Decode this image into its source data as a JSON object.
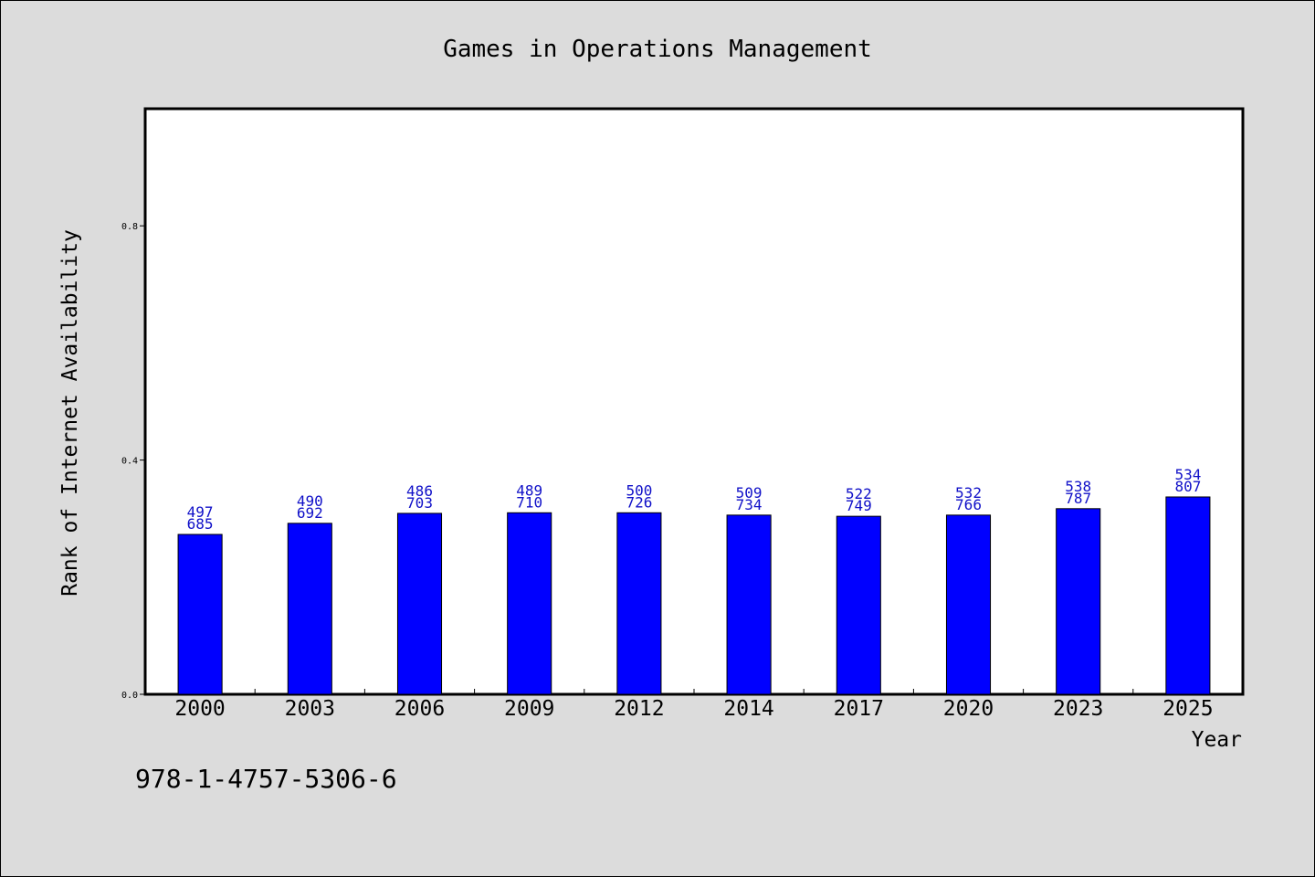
{
  "chart_data": {
    "type": "bar",
    "title": "Games in Operations Management",
    "xlabel": "Year",
    "ylabel": "Rank of Internet Availability",
    "categories": [
      "2000",
      "2003",
      "2006",
      "2009",
      "2012",
      "2014",
      "2017",
      "2020",
      "2023",
      "2025"
    ],
    "values": [
      0.273,
      0.292,
      0.309,
      0.31,
      0.31,
      0.306,
      0.304,
      0.306,
      0.317,
      0.337
    ],
    "labels_top": [
      "497",
      "490",
      "486",
      "489",
      "500",
      "509",
      "522",
      "532",
      "538",
      "534"
    ],
    "labels_bottom": [
      "685",
      "692",
      "703",
      "710",
      "726",
      "734",
      "749",
      "766",
      "787",
      "807"
    ],
    "ylim": [
      0,
      1.0
    ],
    "yticks": [
      "0.0",
      "0.4",
      "0.8"
    ],
    "bar_color": "#0000ff",
    "label_color": "#1010c8",
    "grid": false
  },
  "footer": {
    "code": "978-1-4757-5306-6"
  }
}
